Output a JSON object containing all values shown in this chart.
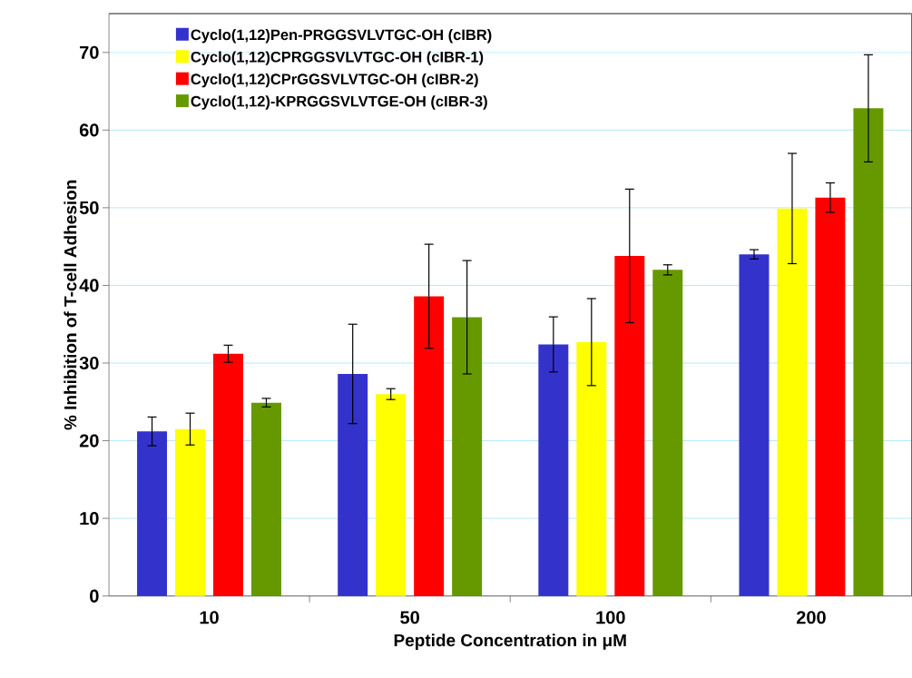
{
  "chart_data": {
    "type": "bar",
    "xlabel": "Peptide Concentration in μM",
    "ylabel": "% Inhibition of T-cell Adhesion",
    "categories": [
      "10",
      "50",
      "100",
      "200"
    ],
    "series": [
      {
        "name": "Cyclo(1,12)Pen-PRGGSVLVTGC-OH (cIBR)",
        "color": "#3333cc",
        "values": [
          21.2,
          28.6,
          32.4,
          44.0
        ],
        "errors": [
          1.85,
          6.4,
          3.55,
          0.6
        ]
      },
      {
        "name": "Cyclo(1,12)CPRGGSVLVTGC-OH (cIBR-1)",
        "color": "#ffff00",
        "values": [
          21.5,
          26.0,
          32.7,
          49.9
        ],
        "errors": [
          2.05,
          0.7,
          5.6,
          7.1
        ]
      },
      {
        "name": "Cyclo(1,12)CPrGGSVLVTGC-OH (cIBR-2)",
        "color": "#ff0000",
        "values": [
          31.2,
          38.6,
          43.8,
          51.3
        ],
        "errors": [
          1.1,
          6.7,
          8.6,
          1.9
        ]
      },
      {
        "name": "Cyclo(1,12)-KPRGGSVLVTGE-OH (cIBR-3)",
        "color": "#669900",
        "values": [
          24.9,
          35.9,
          42.0,
          62.8
        ],
        "errors": [
          0.55,
          7.3,
          0.65,
          6.9
        ]
      }
    ],
    "ylim": [
      0,
      75
    ],
    "yticks": [
      0,
      10,
      20,
      30,
      40,
      50,
      60,
      70
    ],
    "grid": "y",
    "legend": "top left"
  }
}
